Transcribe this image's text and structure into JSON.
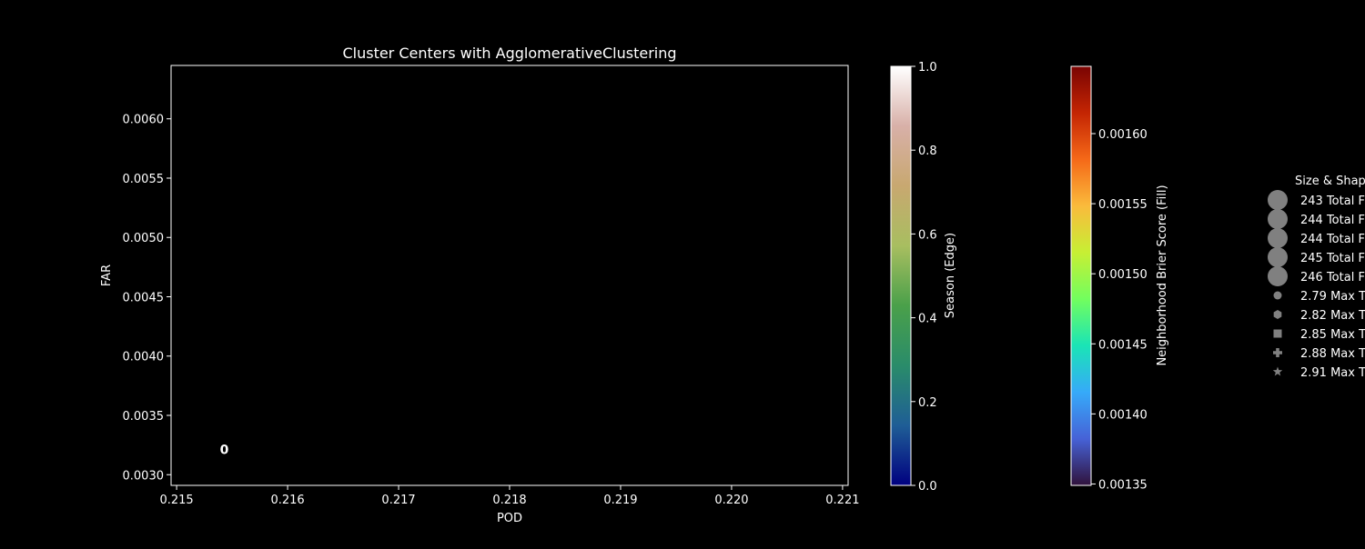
{
  "chart_data": {
    "type": "scatter",
    "title": "Cluster Centers with AgglomerativeClustering",
    "xlabel": "POD",
    "ylabel": "FAR",
    "xlim": [
      0.21495,
      0.22105
    ],
    "ylim": [
      0.00291,
      0.00645
    ],
    "xticks": [
      "0.215",
      "0.216",
      "0.217",
      "0.218",
      "0.219",
      "0.220",
      "0.221"
    ],
    "yticks": [
      "0.0030",
      "0.0035",
      "0.0040",
      "0.0045",
      "0.0050",
      "0.0055",
      "0.0060"
    ],
    "grid": false,
    "points": [
      {
        "label": "0",
        "x": 0.21543,
        "y": 0.00322
      }
    ],
    "colorbars": [
      {
        "label": "Season (Edge)",
        "ticks": [
          "0.0",
          "0.2",
          "0.4",
          "0.6",
          "0.8",
          "1.0"
        ],
        "range": [
          0.0,
          1.0
        ],
        "colors": [
          "#000080",
          "#1f5e96",
          "#2a8c6a",
          "#4aa04a",
          "#a8be60",
          "#c8a870",
          "#d8b0a8",
          "#ffffff"
        ]
      },
      {
        "label": "Neighborhood Brier Score (Fill)",
        "ticks": [
          "0.00135",
          "0.00140",
          "0.00145",
          "0.00150",
          "0.00155",
          "0.00160"
        ],
        "range": [
          0.001349,
          0.001648
        ],
        "colors": [
          "#30123b",
          "#4662d7",
          "#36aaf9",
          "#1ae4b6",
          "#72fe5e",
          "#c7ef34",
          "#fabb3c",
          "#f56918",
          "#c42503",
          "#7a0403"
        ]
      }
    ],
    "legend": {
      "title": "Size & Shape",
      "placement": "right",
      "entries": [
        {
          "marker": "circle-large",
          "label": "243 Total F"
        },
        {
          "marker": "circle-large",
          "label": "244 Total F"
        },
        {
          "marker": "circle-large",
          "label": "244 Total F"
        },
        {
          "marker": "circle-large",
          "label": "245 Total F"
        },
        {
          "marker": "circle-large",
          "label": "246 Total F"
        },
        {
          "marker": "circle-small",
          "label": "2.79 Max T"
        },
        {
          "marker": "hexagon-small",
          "label": "2.82 Max T"
        },
        {
          "marker": "square-small",
          "label": "2.85 Max T"
        },
        {
          "marker": "plus-small",
          "label": "2.88 Max T"
        },
        {
          "marker": "star-small",
          "label": "2.91 Max T"
        }
      ],
      "marker_color": "#808080"
    }
  }
}
